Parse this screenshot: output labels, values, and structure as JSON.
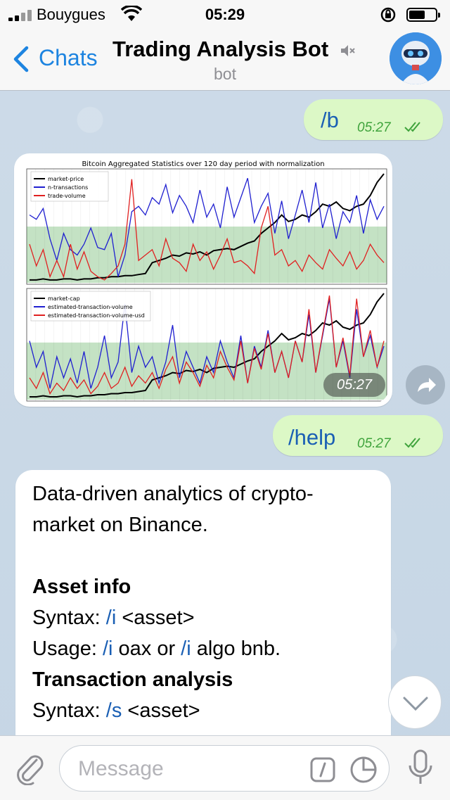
{
  "status_bar": {
    "carrier": "Bouygues",
    "time": "05:29"
  },
  "nav": {
    "back_label": "Chats",
    "title": "Trading Analysis Bot",
    "subtitle": "bot"
  },
  "messages": [
    {
      "type": "outgoing",
      "text": "/b",
      "time": "05:27"
    },
    {
      "type": "outgoing-image",
      "time": "05:27"
    },
    {
      "type": "outgoing",
      "text": "/help",
      "time": "05:27"
    }
  ],
  "chart_data": [
    {
      "type": "line",
      "title": "Bitcoin Aggregated Statistics over 120 day period with normalization",
      "series": [
        {
          "name": "market-price",
          "color": "#000000",
          "values": [
            0.02,
            0.02,
            0.03,
            0.02,
            0.02,
            0.03,
            0.03,
            0.02,
            0.03,
            0.03,
            0.04,
            0.04,
            0.05,
            0.05,
            0.06,
            0.06,
            0.07,
            0.08,
            0.18,
            0.2,
            0.22,
            0.25,
            0.24,
            0.27,
            0.26,
            0.28,
            0.25,
            0.29,
            0.3,
            0.31,
            0.3,
            0.33,
            0.36,
            0.38,
            0.45,
            0.5,
            0.55,
            0.62,
            0.56,
            0.58,
            0.62,
            0.6,
            0.65,
            0.72,
            0.7,
            0.74,
            0.68,
            0.66,
            0.7,
            0.72,
            0.8,
            0.92,
            1.0
          ]
        },
        {
          "name": "n-transactions",
          "color": "#1f1fd0",
          "values": [
            0.62,
            0.58,
            0.68,
            0.4,
            0.2,
            0.45,
            0.3,
            0.25,
            0.35,
            0.5,
            0.32,
            0.3,
            0.45,
            0.05,
            0.25,
            0.65,
            0.7,
            0.62,
            0.78,
            0.72,
            0.9,
            0.64,
            0.8,
            0.7,
            0.55,
            0.85,
            0.6,
            0.72,
            0.5,
            0.88,
            0.6,
            0.78,
            0.96,
            0.55,
            0.7,
            0.82,
            0.45,
            0.75,
            0.4,
            0.62,
            0.85,
            0.55,
            0.92,
            0.5,
            0.72,
            0.4,
            0.65,
            0.55,
            0.8,
            0.45,
            0.76,
            0.58,
            0.7
          ]
        },
        {
          "name": "trade-volume",
          "color": "#e02020",
          "values": [
            0.35,
            0.15,
            0.3,
            0.05,
            0.2,
            0.05,
            0.35,
            0.12,
            0.28,
            0.1,
            0.05,
            0.02,
            0.08,
            0.15,
            0.35,
            0.95,
            0.2,
            0.25,
            0.3,
            0.15,
            0.4,
            0.22,
            0.18,
            0.1,
            0.35,
            0.2,
            0.28,
            0.12,
            0.25,
            0.4,
            0.18,
            0.2,
            0.15,
            0.08,
            0.5,
            0.7,
            0.25,
            0.3,
            0.15,
            0.2,
            0.1,
            0.25,
            0.18,
            0.12,
            0.3,
            0.22,
            0.15,
            0.28,
            0.12,
            0.2,
            0.35,
            0.25,
            0.18
          ]
        }
      ]
    },
    {
      "type": "line",
      "series": [
        {
          "name": "market-cap",
          "color": "#000000",
          "values": [
            0.02,
            0.02,
            0.03,
            0.02,
            0.02,
            0.03,
            0.03,
            0.02,
            0.03,
            0.03,
            0.04,
            0.04,
            0.05,
            0.05,
            0.06,
            0.06,
            0.07,
            0.08,
            0.18,
            0.2,
            0.22,
            0.25,
            0.24,
            0.27,
            0.26,
            0.28,
            0.25,
            0.29,
            0.3,
            0.31,
            0.3,
            0.33,
            0.36,
            0.38,
            0.45,
            0.5,
            0.55,
            0.62,
            0.56,
            0.58,
            0.62,
            0.6,
            0.65,
            0.72,
            0.7,
            0.74,
            0.68,
            0.66,
            0.7,
            0.72,
            0.8,
            0.92,
            1.0
          ]
        },
        {
          "name": "estimated-transaction-volume",
          "color": "#1f1fd0",
          "values": [
            0.55,
            0.3,
            0.45,
            0.1,
            0.4,
            0.2,
            0.38,
            0.15,
            0.45,
            0.1,
            0.3,
            0.6,
            0.2,
            0.35,
            0.9,
            0.25,
            0.5,
            0.3,
            0.4,
            0.15,
            0.35,
            0.7,
            0.2,
            0.45,
            0.3,
            0.15,
            0.4,
            0.25,
            0.55,
            0.35,
            0.2,
            0.6,
            0.15,
            0.5,
            0.3,
            0.65,
            0.25,
            0.45,
            0.2,
            0.55,
            0.35,
            0.8,
            0.25,
            0.6,
            0.95,
            0.3,
            0.55,
            0.2,
            0.85,
            0.4,
            0.6,
            0.3,
            0.5
          ]
        },
        {
          "name": "estimated-transaction-volume-usd",
          "color": "#e02020",
          "values": [
            0.2,
            0.1,
            0.25,
            0.05,
            0.15,
            0.08,
            0.2,
            0.1,
            0.18,
            0.05,
            0.12,
            0.25,
            0.1,
            0.15,
            0.3,
            0.12,
            0.22,
            0.15,
            0.25,
            0.1,
            0.28,
            0.4,
            0.15,
            0.35,
            0.25,
            0.12,
            0.32,
            0.2,
            0.45,
            0.3,
            0.18,
            0.55,
            0.15,
            0.48,
            0.28,
            0.62,
            0.25,
            0.45,
            0.2,
            0.55,
            0.35,
            0.85,
            0.25,
            0.62,
            0.98,
            0.3,
            0.58,
            0.22,
            0.95,
            0.4,
            0.65,
            0.3,
            0.55
          ]
        }
      ]
    }
  ],
  "help": {
    "intro_line1": "Data-driven analytics of crypto-",
    "intro_line2": "market on Binance.",
    "asset_heading": "Asset info",
    "syntax_label": "Syntax: ",
    "asset_syntax_cmd": "/i",
    "asset_syntax_arg": " <asset>",
    "usage_label": "Usage: ",
    "asset_usage_cmd1": "/i",
    "asset_usage_mid": " oax or ",
    "asset_usage_cmd2": "/i",
    "asset_usage_end": " algo bnb.",
    "tx_heading": "Transaction analysis",
    "tx_syntax_cmd": "/s",
    "tx_syntax_arg": " <asset>"
  },
  "input": {
    "placeholder": "Message"
  },
  "colors": {
    "accent": "#1d84e0",
    "outgoing_bubble": "#dcf8c6",
    "command_link": "#1a5fb4",
    "sent_time": "#3fa33c"
  }
}
